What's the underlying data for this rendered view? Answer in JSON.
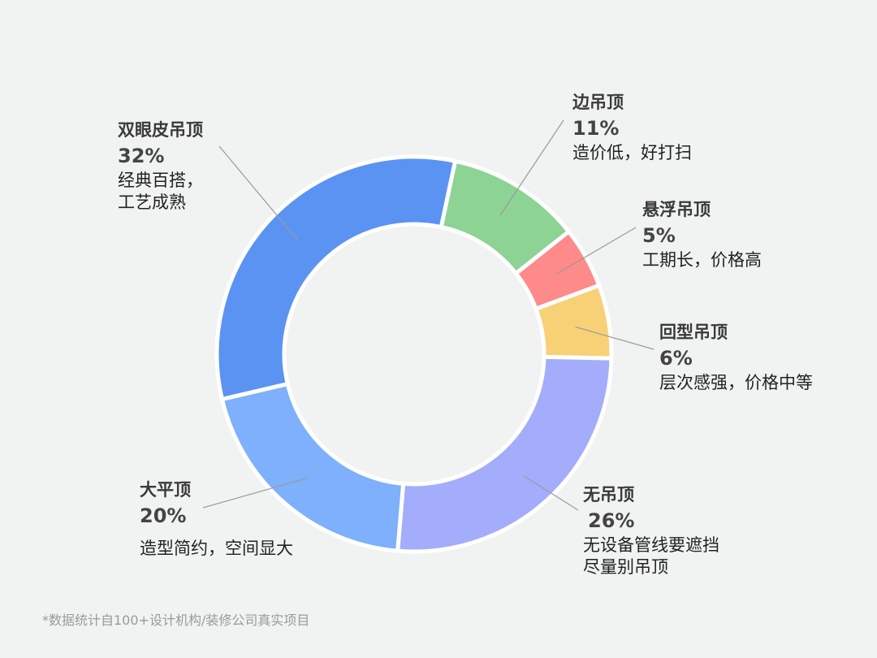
{
  "chart_data": {
    "type": "pie",
    "title": "",
    "categories": [
      "边吊顶",
      "悬浮吊顶",
      "回型吊顶",
      "无吊顶",
      "大平顶",
      "双眼皮吊顶"
    ],
    "values": [
      11,
      5,
      6,
      26,
      20,
      32
    ],
    "value_labels": [
      "11%",
      "5%",
      "6%",
      "26%",
      "20%",
      "32%"
    ],
    "descriptions": [
      "造价低，好打扫",
      "工期长，价格高",
      "层次感强，价格中等",
      "无设备管线要遮挡\n尽量别吊顶",
      "造型简约，空间显大",
      "经典百搭，\n工艺成熟"
    ],
    "colors": [
      "#8dd393",
      "#ff8a8a",
      "#f8d177",
      "#a3adfb",
      "#7eb0fb",
      "#5b93f3"
    ],
    "donut": true,
    "start_angle_deg": 12,
    "legend": "none"
  },
  "footnote": "*数据统计自100+设计机构/装修公司真实项目"
}
